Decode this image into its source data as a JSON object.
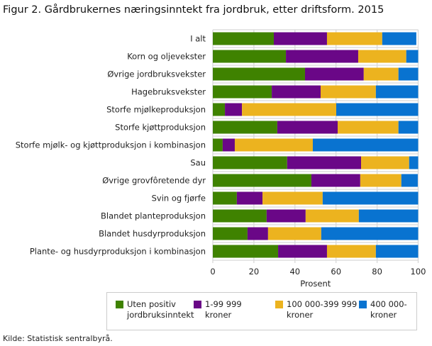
{
  "title": "Figur 2. Gårdbrukernes næringsinntekt fra jordbruk, etter driftsform. 2015",
  "source": "Kilde: Statistisk sentralbyrå.",
  "chart_data": {
    "type": "bar",
    "orientation": "horizontal",
    "stacked": true,
    "xlabel": "Prosent",
    "xlim": [
      0,
      100
    ],
    "xticks": [
      0,
      20,
      40,
      60,
      80,
      100
    ],
    "grid": true,
    "legend_position": "bottom",
    "categories": [
      "I alt",
      "Korn og oljevekster",
      "Øvrige jordbruksvekster",
      "Hagebruksvekster",
      "Storfe mjølkeproduksjon",
      "Storfe kjøttproduksjon",
      "Storfe mjølk- og kjøttproduksjon i kombinasjon",
      "Sau",
      "Øvrige grovfôretende dyr",
      "Svin og fjørfe",
      "Blandet planteproduksjon",
      "Blandet husdyrproduksjon",
      "Plante- og husdyrproduksjon i kombinasjon"
    ],
    "series": [
      {
        "name": "Uten positiv jordbruksinntekt",
        "color": "#3f8200",
        "values": [
          29.7,
          35.6,
          44.9,
          28.7,
          5.9,
          31.4,
          4.8,
          36.2,
          48.0,
          11.7,
          26.2,
          16.9,
          31.8
        ]
      },
      {
        "name": "1-99 999 kroner",
        "color": "#6a0787",
        "values": [
          25.9,
          35.2,
          28.6,
          23.8,
          8.3,
          29.4,
          5.9,
          36.0,
          23.8,
          12.5,
          19.0,
          10.0,
          23.8
        ]
      },
      {
        "name": "100 000-399 999 kroner",
        "color": "#ecb31f",
        "values": [
          26.9,
          23.4,
          16.9,
          26.9,
          45.9,
          29.6,
          38.0,
          23.4,
          20.0,
          29.3,
          25.9,
          25.9,
          23.8
        ]
      },
      {
        "name": "400 000- kroner",
        "color": "#0973d0",
        "values": [
          16.6,
          5.8,
          9.6,
          20.6,
          39.9,
          9.6,
          51.3,
          4.4,
          8.0,
          46.5,
          28.9,
          47.2,
          20.6
        ]
      }
    ]
  }
}
